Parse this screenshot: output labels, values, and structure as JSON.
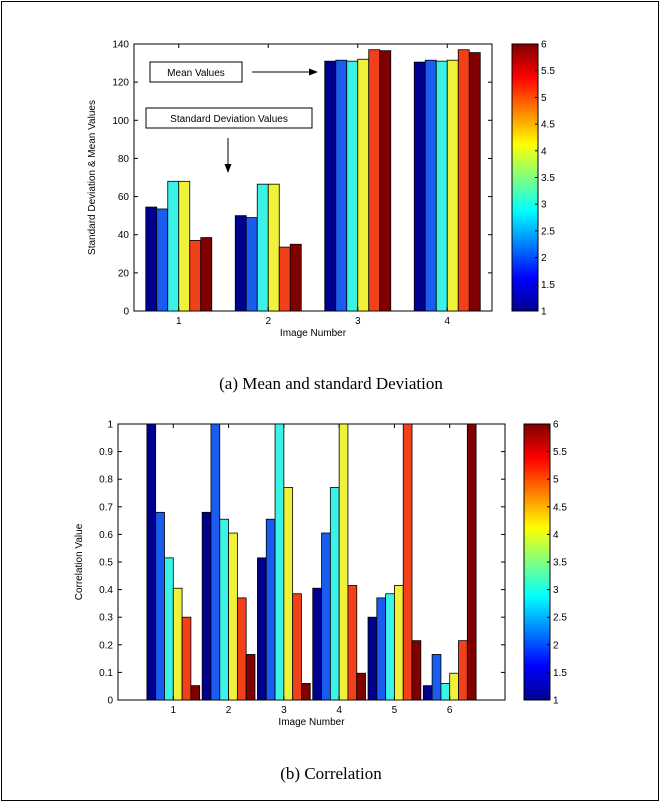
{
  "captions": {
    "a": "(a) Mean and standard Deviation",
    "b": "(b) Correlation"
  },
  "colormap": [
    "#00008f",
    "#1a5cf0",
    "#3af2e6",
    "#f0f23a",
    "#f2401a",
    "#800000"
  ],
  "chart_data": [
    {
      "type": "bar",
      "xlabel": "Image Number",
      "ylabel": "Standard Deviation & Mean Values",
      "categories": [
        "1",
        "2",
        "3",
        "4"
      ],
      "ylim": [
        0,
        140
      ],
      "yticks": [
        0,
        20,
        40,
        60,
        80,
        100,
        120,
        140
      ],
      "series": [
        {
          "values": [
            54.5,
            50,
            131,
            130.5
          ]
        },
        {
          "values": [
            53.5,
            49,
            131.5,
            131.5
          ]
        },
        {
          "values": [
            68,
            66.5,
            131,
            131
          ]
        },
        {
          "values": [
            68,
            66.5,
            132,
            131.5
          ]
        },
        {
          "values": [
            37,
            33.5,
            137,
            137
          ]
        },
        {
          "values": [
            38.5,
            35,
            136.5,
            135.5
          ]
        }
      ],
      "annotations": [
        "Mean Values",
        "Standard Deviation Values"
      ],
      "colorbar": {
        "range": [
          1,
          6
        ],
        "ticks": [
          "1",
          "1.5",
          "2",
          "2.5",
          "3",
          "3.5",
          "4",
          "4.5",
          "5",
          "5.5",
          "6"
        ]
      }
    },
    {
      "type": "bar",
      "xlabel": "Image Number",
      "ylabel": "Correlation Value",
      "categories": [
        "1",
        "2",
        "3",
        "4",
        "5",
        "6"
      ],
      "ylim": [
        0,
        1
      ],
      "yticks": [
        "0",
        "0.1",
        "0.2",
        "0.3",
        "0.4",
        "0.5",
        "0.6",
        "0.7",
        "0.8",
        "0.9",
        "1"
      ],
      "series": [
        {
          "values": [
            1,
            0.68,
            0.515,
            0.405,
            0.3,
            0.052
          ]
        },
        {
          "values": [
            0.68,
            1,
            0.655,
            0.605,
            0.37,
            0.165
          ]
        },
        {
          "values": [
            0.515,
            0.655,
            1,
            0.77,
            0.385,
            0.06
          ]
        },
        {
          "values": [
            0.405,
            0.605,
            0.77,
            1,
            0.415,
            0.097
          ]
        },
        {
          "values": [
            0.3,
            0.37,
            0.385,
            0.415,
            1,
            0.215
          ]
        },
        {
          "values": [
            0.052,
            0.165,
            0.06,
            0.097,
            0.215,
            1
          ]
        }
      ],
      "colorbar": {
        "range": [
          1,
          6
        ],
        "ticks": [
          "1",
          "1.5",
          "2",
          "2.5",
          "3",
          "3.5",
          "4",
          "4.5",
          "5",
          "5.5",
          "6"
        ]
      }
    }
  ]
}
